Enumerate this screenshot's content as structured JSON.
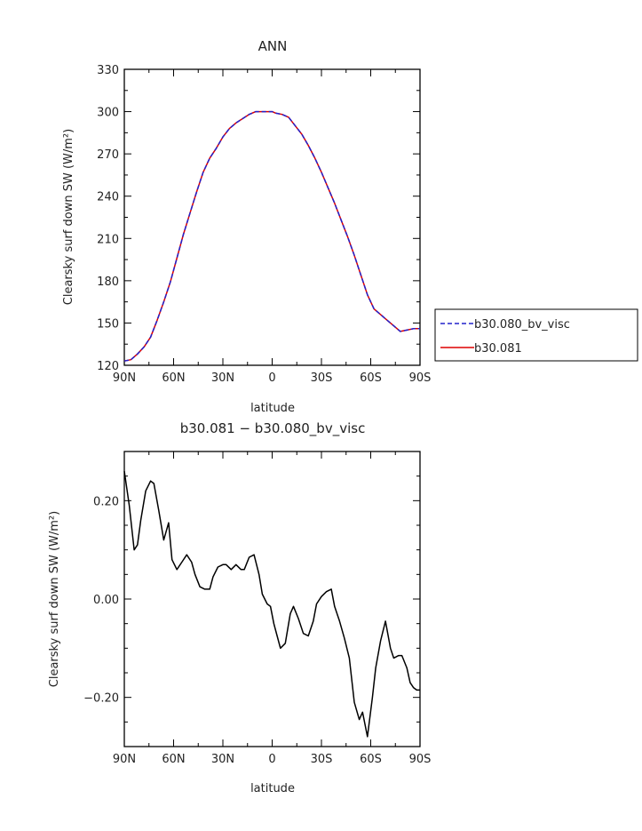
{
  "chart_data": [
    {
      "type": "line",
      "title": "ANN",
      "xlabel": "latitude",
      "ylabel": "Clearsky surf down SW (W/m²)",
      "xlim": [
        -90,
        90
      ],
      "ylim": [
        120,
        330
      ],
      "xticks": [
        -90,
        -60,
        -30,
        0,
        30,
        60,
        90
      ],
      "xtick_labels": [
        "90N",
        "60N",
        "30N",
        "0",
        "30S",
        "60S",
        "90S"
      ],
      "yticks": [
        120,
        150,
        180,
        210,
        240,
        270,
        300,
        330
      ],
      "ytick_labels": [
        "120",
        "150",
        "180",
        "210",
        "240",
        "270",
        "300",
        "330"
      ],
      "legend_position": "right",
      "x": [
        -90,
        -86,
        -82,
        -78,
        -74,
        -70,
        -66,
        -62,
        -58,
        -54,
        -50,
        -46,
        -42,
        -38,
        -34,
        -30,
        -26,
        -22,
        -18,
        -14,
        -10,
        -6,
        -2,
        0,
        2,
        6,
        10,
        14,
        18,
        22,
        26,
        30,
        34,
        38,
        42,
        46,
        50,
        54,
        58,
        62,
        66,
        70,
        74,
        78,
        82,
        86,
        90
      ],
      "series": [
        {
          "name": "b30.080_bv_visc",
          "color": "#2222cc",
          "dash": "dashed",
          "values": [
            123,
            124,
            128,
            133,
            140,
            152,
            165,
            179,
            196,
            213,
            228,
            243,
            257,
            267,
            274,
            282,
            288,
            292,
            295,
            298,
            300,
            300,
            300,
            300,
            299,
            298,
            296,
            290,
            284,
            276,
            267,
            257,
            246,
            235,
            223,
            211,
            198,
            184,
            170,
            160,
            156,
            152,
            148,
            144,
            145,
            146,
            146
          ]
        },
        {
          "name": "b30.081",
          "color": "#dd0000",
          "dash": "solid",
          "values": [
            123,
            124,
            128,
            133,
            140,
            152,
            165,
            179,
            196,
            213,
            228,
            243,
            257,
            267,
            274,
            282,
            288,
            292,
            295,
            298,
            300,
            300,
            300,
            300,
            299,
            298,
            296,
            290,
            284,
            276,
            267,
            257,
            246,
            235,
            223,
            211,
            198,
            184,
            170,
            160,
            156,
            152,
            148,
            144,
            145,
            146,
            146
          ]
        }
      ]
    },
    {
      "type": "line",
      "title": "b30.081 − b30.080_bv_visc",
      "xlabel": "latitude",
      "ylabel": "Clearsky surf down SW (W/m²)",
      "xlim": [
        -90,
        90
      ],
      "ylim": [
        -0.3,
        0.3
      ],
      "xticks": [
        -90,
        -60,
        -30,
        0,
        30,
        60,
        90
      ],
      "xtick_labels": [
        "90N",
        "60N",
        "30N",
        "0",
        "30S",
        "60S",
        "90S"
      ],
      "yticks": [
        -0.2,
        0.0,
        0.2
      ],
      "ytick_labels": [
        "−0.20",
        "0.00",
        "0.20"
      ],
      "series": [
        {
          "color": "#000000",
          "x": [
            -90,
            -87,
            -84,
            -82,
            -80,
            -77,
            -74,
            -72,
            -69,
            -66,
            -63,
            -61,
            -58,
            -55,
            -52,
            -49,
            -47,
            -44,
            -41,
            -38,
            -36,
            -33,
            -30,
            -28,
            -25,
            -22,
            -19,
            -17,
            -14,
            -11,
            -8,
            -6,
            -3,
            -1,
            1,
            3,
            5,
            8,
            11,
            13,
            16,
            19,
            22,
            25,
            27,
            30,
            33,
            36,
            38,
            41,
            44,
            47,
            50,
            53,
            55,
            58,
            61,
            63,
            66,
            69,
            72,
            74,
            77,
            79,
            82,
            84,
            86,
            88,
            90
          ],
          "values": [
            0.26,
            0.19,
            0.1,
            0.11,
            0.16,
            0.22,
            0.24,
            0.235,
            0.18,
            0.12,
            0.155,
            0.08,
            0.06,
            0.075,
            0.09,
            0.075,
            0.05,
            0.025,
            0.02,
            0.02,
            0.045,
            0.065,
            0.07,
            0.07,
            0.06,
            0.07,
            0.06,
            0.06,
            0.085,
            0.09,
            0.05,
            0.01,
            -0.01,
            -0.015,
            -0.05,
            -0.075,
            -0.1,
            -0.09,
            -0.03,
            -0.015,
            -0.04,
            -0.07,
            -0.075,
            -0.045,
            -0.01,
            0.005,
            0.015,
            0.02,
            -0.015,
            -0.045,
            -0.08,
            -0.12,
            -0.21,
            -0.245,
            -0.23,
            -0.28,
            -0.2,
            -0.14,
            -0.085,
            -0.045,
            -0.1,
            -0.12,
            -0.115,
            -0.115,
            -0.14,
            -0.17,
            -0.18,
            -0.185,
            -0.185
          ]
        }
      ]
    }
  ],
  "legend": {
    "items": [
      {
        "label": "b30.080_bv_visc",
        "color": "#2222cc",
        "dash": "dashed"
      },
      {
        "label": "b30.081",
        "color": "#dd0000",
        "dash": "solid"
      }
    ]
  }
}
